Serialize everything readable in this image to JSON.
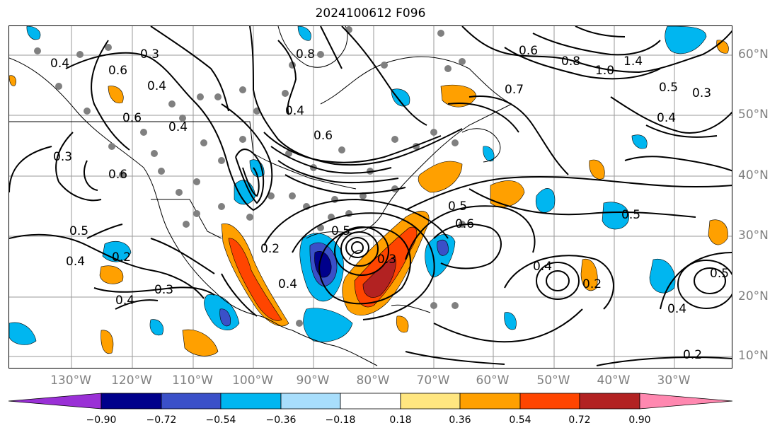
{
  "title": "2024100612 F096",
  "lon_labels": [
    "130°W",
    "120°W",
    "110°W",
    "100°W",
    "90°W",
    "80°W",
    "70°W",
    "60°W",
    "50°W",
    "40°W",
    "30°W"
  ],
  "lat_labels": [
    "60°N",
    "50°N",
    "40°N",
    "30°N",
    "20°N",
    "10°N"
  ],
  "contour_labels": [
    "0.4",
    "0.6",
    "0.3",
    "0.4",
    "0.8",
    "0.6",
    "0.4",
    "0.3",
    "0.6",
    "0.6",
    "0.4",
    "0.5",
    "0.2",
    "0.4",
    "0.3",
    "0.4",
    "0.2",
    "0.5",
    "0.4",
    "0.3",
    "0.5",
    "0.6",
    "0.7",
    "0.8",
    "0.6",
    "1.0",
    "1.4",
    "0.5",
    "0.4",
    "0.3",
    "0.5",
    "0.4",
    "0.2",
    "0.5",
    "0.4",
    "0.2"
  ],
  "colorbar": {
    "ticks": [
      "−0.90",
      "−0.72",
      "−0.54",
      "−0.36",
      "−0.18",
      "0.18",
      "0.36",
      "0.54",
      "0.72",
      "0.90"
    ],
    "colors": [
      "#9a30d6",
      "#00008b",
      "#3a50c8",
      "#00b6f0",
      "#a8defc",
      "#ffffff",
      "#ffe680",
      "#ffa000",
      "#ff4500",
      "#b22222",
      "#ff88b0"
    ]
  }
}
